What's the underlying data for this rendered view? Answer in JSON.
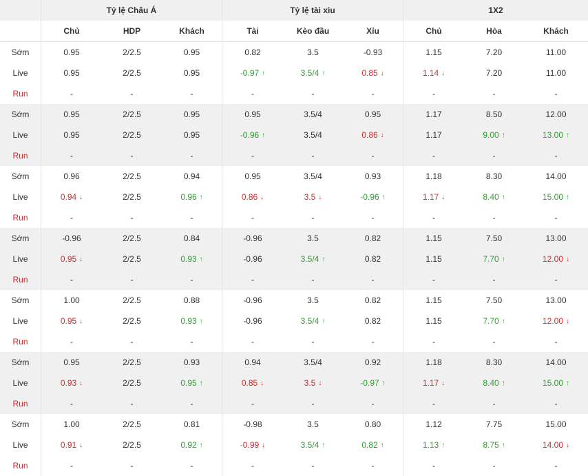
{
  "header": {
    "groups": [
      "Tỷ lệ Châu Á",
      "Tỷ lệ tài xiu",
      "1X2"
    ],
    "columns": [
      "Chủ",
      "HDP",
      "Khách",
      "Tài",
      "Kèo đầu",
      "Xỉu",
      "Chủ",
      "Hòa",
      "Khách"
    ]
  },
  "row_labels": {
    "early": "Sớm",
    "live": "Live",
    "run": "Run"
  },
  "colors": {
    "up": "#2e9e2e",
    "down": "#d22a2a",
    "shade": "#f0f0f0"
  },
  "blocks": [
    {
      "early": [
        "0.95",
        "2/2.5",
        "0.95",
        "0.82",
        "3.5",
        "-0.93",
        "1.15",
        "7.20",
        "11.00"
      ],
      "live": [
        {
          "v": "0.95"
        },
        {
          "v": "2/2.5"
        },
        {
          "v": "0.95"
        },
        {
          "v": "-0.97",
          "dir": "up"
        },
        {
          "v": "3.5/4",
          "dir": "up"
        },
        {
          "v": "0.85",
          "dir": "down"
        },
        {
          "v": "1.14",
          "dir": "down"
        },
        {
          "v": "7.20"
        },
        {
          "v": "11.00"
        }
      ],
      "run": [
        "-",
        "-",
        "-",
        "-",
        "-",
        "-",
        "-",
        "-",
        "-"
      ]
    },
    {
      "early": [
        "0.95",
        "2/2.5",
        "0.95",
        "0.95",
        "3.5/4",
        "0.95",
        "1.17",
        "8.50",
        "12.00"
      ],
      "live": [
        {
          "v": "0.95"
        },
        {
          "v": "2/2.5"
        },
        {
          "v": "0.95"
        },
        {
          "v": "-0.96",
          "dir": "up"
        },
        {
          "v": "3.5/4"
        },
        {
          "v": "0.86",
          "dir": "down"
        },
        {
          "v": "1.17"
        },
        {
          "v": "9.00",
          "dir": "up"
        },
        {
          "v": "13.00",
          "dir": "up"
        }
      ],
      "run": [
        "-",
        "-",
        "-",
        "-",
        "-",
        "-",
        "-",
        "-",
        "-"
      ]
    },
    {
      "early": [
        "0.96",
        "2/2.5",
        "0.94",
        "0.95",
        "3.5/4",
        "0.93",
        "1.18",
        "8.30",
        "14.00"
      ],
      "live": [
        {
          "v": "0.94",
          "dir": "down"
        },
        {
          "v": "2/2.5"
        },
        {
          "v": "0.96",
          "dir": "up"
        },
        {
          "v": "0.86",
          "dir": "down"
        },
        {
          "v": "3.5",
          "dir": "down"
        },
        {
          "v": "-0.96",
          "dir": "up"
        },
        {
          "v": "1.17",
          "dir": "down"
        },
        {
          "v": "8.40",
          "dir": "up"
        },
        {
          "v": "15.00",
          "dir": "up"
        }
      ],
      "run": [
        "-",
        "-",
        "-",
        "-",
        "-",
        "-",
        "-",
        "-",
        "-"
      ]
    },
    {
      "early": [
        "-0.96",
        "2/2.5",
        "0.84",
        "-0.96",
        "3.5",
        "0.82",
        "1.15",
        "7.50",
        "13.00"
      ],
      "live": [
        {
          "v": "0.95",
          "dir": "down"
        },
        {
          "v": "2/2.5"
        },
        {
          "v": "0.93",
          "dir": "up"
        },
        {
          "v": "-0.96"
        },
        {
          "v": "3.5/4",
          "dir": "up"
        },
        {
          "v": "0.82"
        },
        {
          "v": "1.15"
        },
        {
          "v": "7.70",
          "dir": "up"
        },
        {
          "v": "12.00",
          "dir": "down"
        }
      ],
      "run": [
        "-",
        "-",
        "-",
        "-",
        "-",
        "-",
        "-",
        "-",
        "-"
      ]
    },
    {
      "early": [
        "1.00",
        "2/2.5",
        "0.88",
        "-0.96",
        "3.5",
        "0.82",
        "1.15",
        "7.50",
        "13.00"
      ],
      "live": [
        {
          "v": "0.95",
          "dir": "down"
        },
        {
          "v": "2/2.5"
        },
        {
          "v": "0.93",
          "dir": "up"
        },
        {
          "v": "-0.96"
        },
        {
          "v": "3.5/4",
          "dir": "up"
        },
        {
          "v": "0.82"
        },
        {
          "v": "1.15"
        },
        {
          "v": "7.70",
          "dir": "up"
        },
        {
          "v": "12.00",
          "dir": "down"
        }
      ],
      "run": [
        "-",
        "-",
        "-",
        "-",
        "-",
        "-",
        "-",
        "-",
        "-"
      ]
    },
    {
      "early": [
        "0.95",
        "2/2.5",
        "0.93",
        "0.94",
        "3.5/4",
        "0.92",
        "1.18",
        "8.30",
        "14.00"
      ],
      "live": [
        {
          "v": "0.93",
          "dir": "down"
        },
        {
          "v": "2/2.5"
        },
        {
          "v": "0.95",
          "dir": "up"
        },
        {
          "v": "0.85",
          "dir": "down"
        },
        {
          "v": "3.5",
          "dir": "down"
        },
        {
          "v": "-0.97",
          "dir": "up"
        },
        {
          "v": "1.17",
          "dir": "down"
        },
        {
          "v": "8.40",
          "dir": "up"
        },
        {
          "v": "15.00",
          "dir": "up"
        }
      ],
      "run": [
        "-",
        "-",
        "-",
        "-",
        "-",
        "-",
        "-",
        "-",
        "-"
      ]
    },
    {
      "early": [
        "1.00",
        "2/2.5",
        "0.81",
        "-0.98",
        "3.5",
        "0.80",
        "1.12",
        "7.75",
        "15.00"
      ],
      "live": [
        {
          "v": "0.91",
          "dir": "down"
        },
        {
          "v": "2/2.5"
        },
        {
          "v": "0.92",
          "dir": "up"
        },
        {
          "v": "-0.99",
          "dir": "down"
        },
        {
          "v": "3.5/4",
          "dir": "up"
        },
        {
          "v": "0.82",
          "dir": "up"
        },
        {
          "v": "1.13",
          "dir": "up"
        },
        {
          "v": "8.75",
          "dir": "up"
        },
        {
          "v": "14.00",
          "dir": "down"
        }
      ],
      "run": [
        "-",
        "-",
        "-",
        "-",
        "-",
        "-",
        "-",
        "-",
        "-"
      ]
    }
  ]
}
